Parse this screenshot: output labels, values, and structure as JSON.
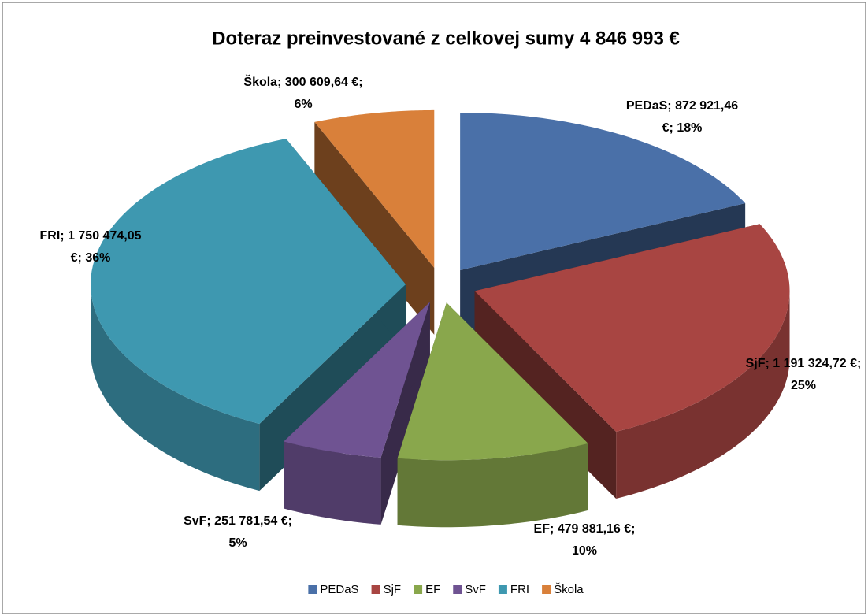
{
  "chart_data": {
    "type": "pie3d",
    "title": "Doteraz preinvestované z celkovej  sumy 4 846 993 €",
    "categories": [
      "PEDaS",
      "SjF",
      "EF",
      "SvF",
      "FRI",
      "Škola"
    ],
    "values": [
      872921.46,
      1191324.72,
      479881.16,
      251781.54,
      1750474.05,
      300609.64
    ],
    "value_labels": [
      "PEDaS; 872 921,46 €; 18%",
      "SjF; 1 191 324,72 €; 25%",
      "EF; 479 881,16 €; 10%",
      "SvF; 251 781,54 €; 5%",
      "FRI; 1 750 474,05 €; 36%",
      "Škola; 300 609,64 €; 6%"
    ],
    "colors": [
      "#4a70a8",
      "#a84542",
      "#89a74c",
      "#6f5392",
      "#3e98b0",
      "#d9803a"
    ],
    "legend": "bottom"
  }
}
